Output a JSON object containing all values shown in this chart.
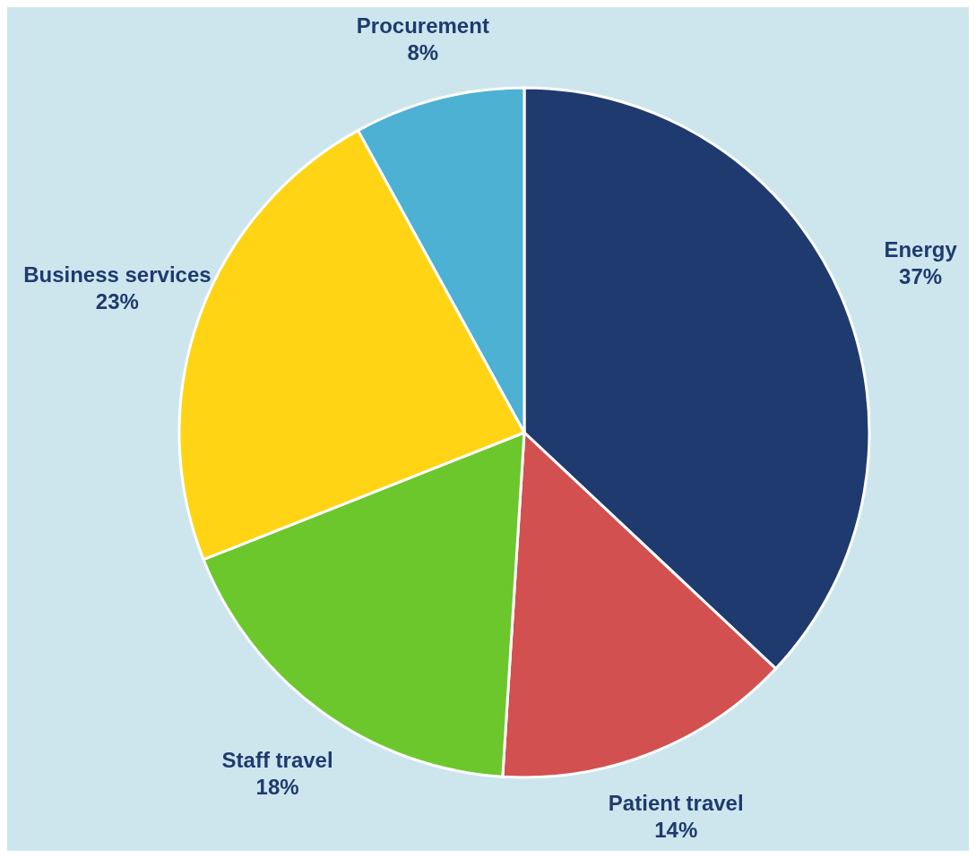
{
  "chart_data": {
    "type": "pie",
    "categories": [
      "Energy",
      "Patient travel",
      "Staff travel",
      "Business services",
      "Procurement"
    ],
    "values": [
      37,
      14,
      18,
      23,
      8
    ],
    "value_labels": [
      "37%",
      "14%",
      "18%",
      "23%",
      "8%"
    ],
    "colors": [
      "#1f3a6e",
      "#d35050",
      "#6cc72c",
      "#ffd414",
      "#4db1d3"
    ],
    "legend": false
  }
}
